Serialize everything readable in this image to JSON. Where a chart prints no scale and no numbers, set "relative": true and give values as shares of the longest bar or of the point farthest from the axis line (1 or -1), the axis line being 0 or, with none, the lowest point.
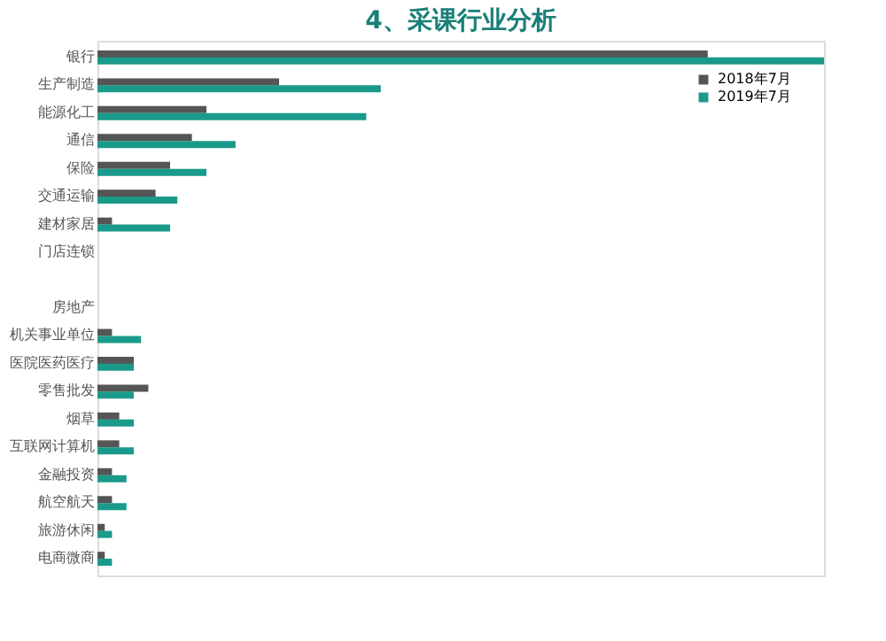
{
  "chart_data": {
    "type": "bar",
    "orientation": "horizontal",
    "relative": true,
    "title": "4、采课行业分析",
    "legend": "top right",
    "categories": [
      "银行",
      "生产制造",
      "能源化工",
      "通信",
      "保险",
      "交通运输",
      "建材家居",
      "门店连锁",
      null,
      "房地产",
      "机关事业单位",
      "医院医药医疗",
      "零售批发",
      "烟草",
      "互联网计算机",
      "金融投资",
      "航空航天",
      "旅游休闲",
      "电商微商"
    ],
    "series": [
      {
        "name": "2018年7月",
        "color": "#555555",
        "values": [
          0.84,
          0.25,
          0.15,
          0.13,
          0.1,
          0.08,
          0.02,
          null,
          null,
          null,
          0.02,
          0.05,
          0.07,
          0.03,
          0.03,
          0.02,
          0.02,
          0.01,
          0.01
        ]
      },
      {
        "name": "2019年7月",
        "color": "#1a9a8a",
        "values": [
          1,
          0.39,
          0.37,
          0.19,
          0.15,
          0.11,
          0.1,
          null,
          null,
          null,
          0.06,
          0.05,
          0.05,
          0.05,
          0.05,
          0.04,
          0.04,
          0.02,
          0.02
        ]
      }
    ]
  }
}
